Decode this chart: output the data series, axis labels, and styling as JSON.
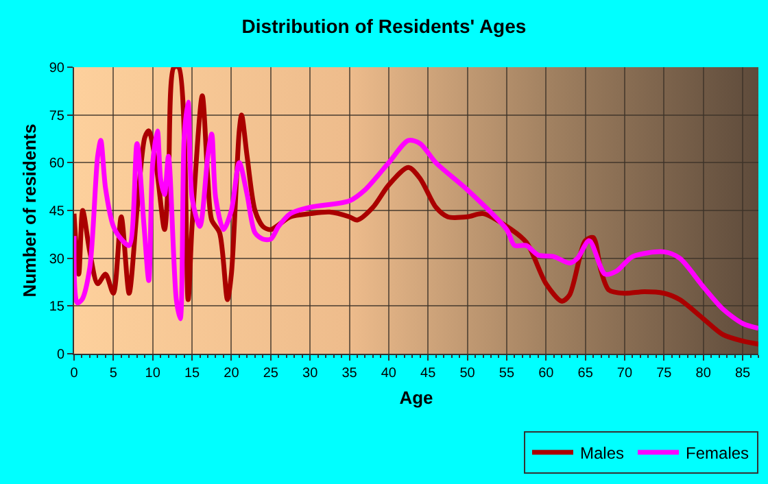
{
  "chart_data": {
    "type": "line",
    "title": "Distribution of Residents' Ages",
    "xlabel": "Age",
    "ylabel": "Number of residents",
    "xlim": [
      0,
      87
    ],
    "xticks": [
      0,
      5,
      10,
      15,
      20,
      25,
      30,
      35,
      40,
      45,
      50,
      55,
      60,
      65,
      70,
      75,
      80,
      85
    ],
    "ylim": [
      0,
      90
    ],
    "yticks": [
      0,
      15,
      30,
      45,
      60,
      75,
      90
    ],
    "grid": true,
    "legend": "bottom right",
    "marker": "none",
    "line_style": "solid",
    "series": [
      {
        "name": "Males",
        "color": "#aa0000",
        "x": [
          0,
          0.6,
          1.1,
          2,
          3,
          4,
          5,
          6,
          7,
          8,
          9,
          9.5,
          10.5,
          11.5,
          12,
          12.7,
          13.3,
          14.5,
          15,
          16.3,
          17,
          17.5,
          18.5,
          19.5,
          20,
          21,
          21.3,
          22,
          23,
          24,
          25,
          27.5,
          30,
          32.5,
          35,
          36,
          38,
          40,
          42.5,
          44,
          46,
          47.5,
          50,
          52,
          55,
          57.5,
          60,
          62,
          63,
          65,
          66,
          67,
          68,
          70,
          72.5,
          75,
          77,
          80,
          82.5,
          85,
          87
        ],
        "values": [
          44,
          25,
          45,
          32,
          22,
          25,
          19,
          43,
          19,
          45,
          68,
          70,
          58,
          39,
          55,
          90,
          90,
          17,
          40,
          81,
          55,
          42,
          38,
          17,
          25,
          70,
          75,
          62,
          45,
          40,
          39,
          43,
          44,
          44.5,
          43,
          42,
          46,
          53,
          58.5,
          55,
          46,
          43,
          43,
          44,
          40,
          35,
          22,
          16.5,
          18.5,
          35.5,
          36.5,
          26,
          20,
          19,
          19.5,
          19,
          17,
          11,
          6,
          4,
          3
        ]
      },
      {
        "name": "Females",
        "color": "#ff00ff",
        "x": [
          0,
          0.4,
          1,
          2,
          3,
          3.4,
          4,
          5,
          6,
          7,
          8,
          8.9,
          9.5,
          10,
          10.6,
          11,
          11.5,
          12,
          13,
          13.5,
          14,
          14.5,
          15,
          16,
          17,
          17.5,
          18,
          19,
          20,
          21,
          22,
          23,
          24,
          25,
          26,
          27.5,
          30,
          35,
          37,
          40,
          42.5,
          44,
          46,
          50,
          55,
          56,
          57.5,
          59,
          61,
          63,
          64,
          65.5,
          67.5,
          69,
          71,
          75,
          77,
          80,
          82.5,
          85,
          87
        ],
        "values": [
          37,
          16,
          17,
          27,
          62,
          67,
          52,
          40,
          36,
          34,
          66,
          40,
          23,
          60,
          70,
          55,
          50,
          62,
          17,
          11,
          68,
          79,
          49,
          40,
          62,
          69,
          49,
          39,
          45,
          60,
          50,
          38,
          36,
          36,
          40,
          44,
          46,
          48,
          51.5,
          60,
          67,
          66,
          60,
          51.5,
          39,
          34,
          34,
          31,
          30.5,
          28.5,
          30,
          35.5,
          25,
          26,
          30.5,
          32,
          30,
          21,
          14,
          9.5,
          8
        ]
      }
    ]
  }
}
